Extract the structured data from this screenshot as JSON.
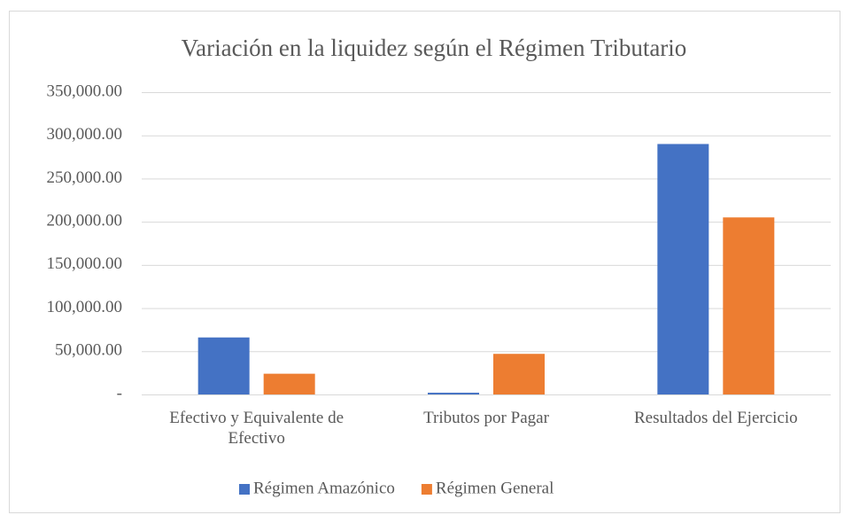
{
  "chart_data": {
    "type": "bar",
    "title": "Variación en la liquidez según el Régimen Tributario",
    "categories": [
      "Efectivo y Equivalente de Efectivo",
      "Tributos por Pagar",
      "Resultados del Ejercicio"
    ],
    "series": [
      {
        "name": "Régimen Amazónico",
        "color": "#4472c4",
        "values": [
          66000,
          2000,
          290000
        ]
      },
      {
        "name": "Régimen General",
        "color": "#ed7d31",
        "values": [
          24000,
          47000,
          205000
        ]
      }
    ],
    "ylim": [
      0,
      350000
    ],
    "yticks": [
      {
        "value": 0,
        "label": "-"
      },
      {
        "value": 50000,
        "label": "50,000.00"
      },
      {
        "value": 100000,
        "label": "100,000.00"
      },
      {
        "value": 150000,
        "label": "150,000.00"
      },
      {
        "value": 200000,
        "label": "200,000.00"
      },
      {
        "value": 250000,
        "label": "250,000.00"
      },
      {
        "value": 300000,
        "label": "300,000.00"
      },
      {
        "value": 350000,
        "label": "350,000.00"
      }
    ],
    "grid": true,
    "legend": "bottom"
  }
}
